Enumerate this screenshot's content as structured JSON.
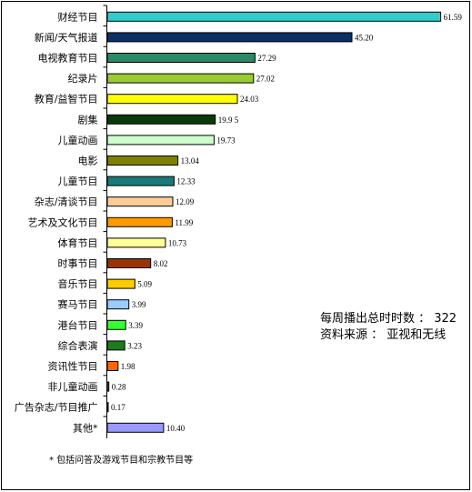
{
  "chart_data": {
    "type": "bar",
    "orientation": "horizontal",
    "categories": [
      "财经节目",
      "新闻/天气报道",
      "电视教育节目",
      "纪录片",
      "教育/益智节目",
      "剧集",
      "儿童动画",
      "电影",
      "儿童节目",
      "杂志/清谈节目",
      "艺术及文化节目",
      "体育节目",
      "时事节目",
      "音乐节目",
      "赛马节目",
      "港台节目",
      "综合表演",
      "资讯性节目",
      "非儿童动画",
      "广告杂志/节目推广",
      "其他*"
    ],
    "values": [
      61.59,
      45.2,
      27.29,
      27.02,
      24.03,
      19.95,
      19.73,
      13.04,
      12.33,
      12.09,
      11.99,
      10.73,
      8.02,
      5.09,
      3.99,
      3.39,
      3.23,
      1.98,
      0.28,
      0.17,
      10.4
    ],
    "value_labels": [
      "61.59",
      "45.20",
      "27.29",
      "27.02",
      "24.03",
      "19.9 5",
      "19.73",
      "13.04",
      "12.33",
      "12.09",
      "11.99",
      "10.73",
      "8.02",
      "5.09",
      "3.99",
      "3.39",
      "3.23",
      "1.98",
      "0.28",
      "0.17",
      "10.40"
    ],
    "colors": [
      "#33cccc",
      "#0b2f66",
      "#2a8a66",
      "#99cc33",
      "#ffff00",
      "#0a3a0a",
      "#ccffcc",
      "#808000",
      "#1a7a7a",
      "#ffcc99",
      "#ff9900",
      "#ffff99",
      "#993300",
      "#ffcc00",
      "#99ccff",
      "#33ff33",
      "#1f7a1f",
      "#ff6600",
      "#3a7a9a",
      "#cccccc",
      "#9999ff"
    ],
    "xlim": [
      0,
      62
    ],
    "grid": false,
    "legend": "none"
  },
  "notes": {
    "line1": "每周播出总时时数 ： 322",
    "line2": "资料来源 ： 亚视和无线"
  },
  "footnote": "* 包括问答及游戏节目和宗教节目等"
}
